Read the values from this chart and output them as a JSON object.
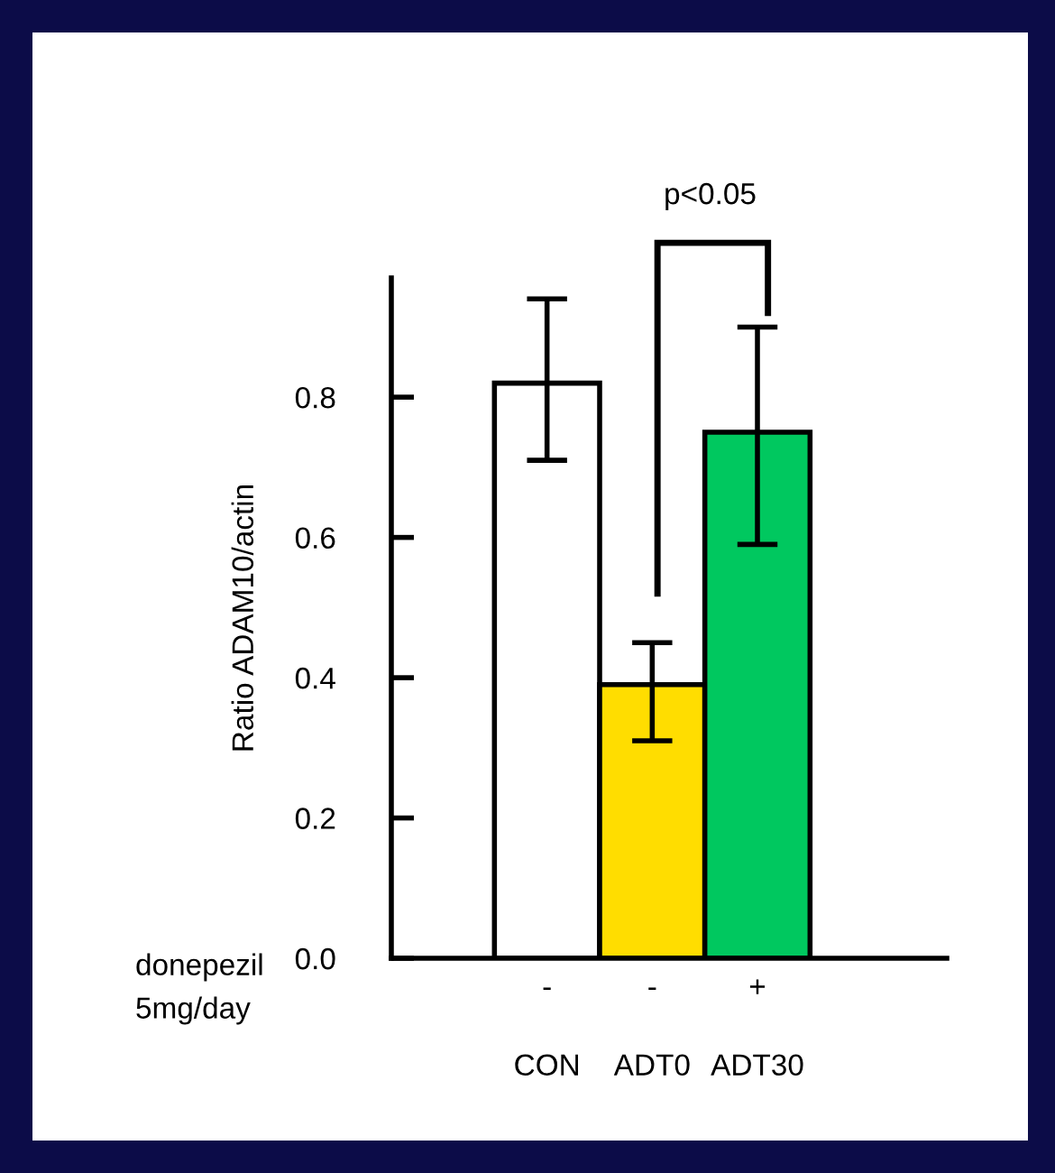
{
  "chart_data": {
    "type": "bar",
    "categories": [
      "CON",
      "ADT0",
      "ADT30"
    ],
    "values": [
      0.82,
      0.39,
      0.75
    ],
    "colors": [
      "#ffffff",
      "#ffdd00",
      "#00c85f"
    ],
    "errors": [
      [
        0.71,
        0.94
      ],
      [
        0.31,
        0.45
      ],
      [
        0.59,
        0.9
      ]
    ],
    "ylabel": "Ratio ADAM10/actin",
    "xlabel": "donepezil\n5mg/day",
    "ylim": [
      0,
      0.97
    ],
    "yticks": [
      {
        "value": 0,
        "label": "0.0"
      },
      0.2,
      0.4,
      0.6,
      0.8
    ],
    "annotations": [
      "-",
      "-",
      "+",
      "p<0.05"
    ],
    "grid": false,
    "legend": false
  }
}
